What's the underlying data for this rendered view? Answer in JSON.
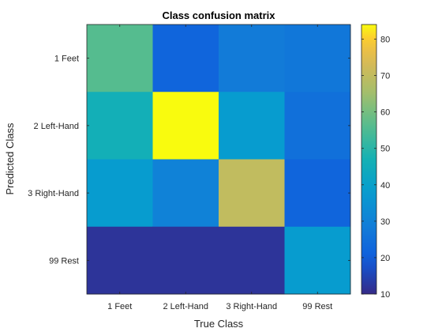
{
  "chart_data": {
    "type": "heatmap",
    "title": "Class confusion matrix",
    "xlabel": "True Class",
    "ylabel": "Predicted Class",
    "x_categories": [
      "1 Feet",
      "2 Left-Hand",
      "3 Right-Hand",
      "99 Rest"
    ],
    "y_categories": [
      "1 Feet",
      "2 Left-Hand",
      "3 Right-Hand",
      "99 Rest"
    ],
    "values": [
      [
        56,
        22,
        28,
        27
      ],
      [
        46,
        84,
        38,
        25
      ],
      [
        38,
        30,
        70,
        22
      ],
      [
        12,
        12,
        12,
        38
      ]
    ],
    "colorbar": {
      "range": [
        10,
        84
      ],
      "ticks": [
        10,
        20,
        30,
        40,
        50,
        60,
        70,
        80
      ],
      "colormap": "parula"
    }
  }
}
